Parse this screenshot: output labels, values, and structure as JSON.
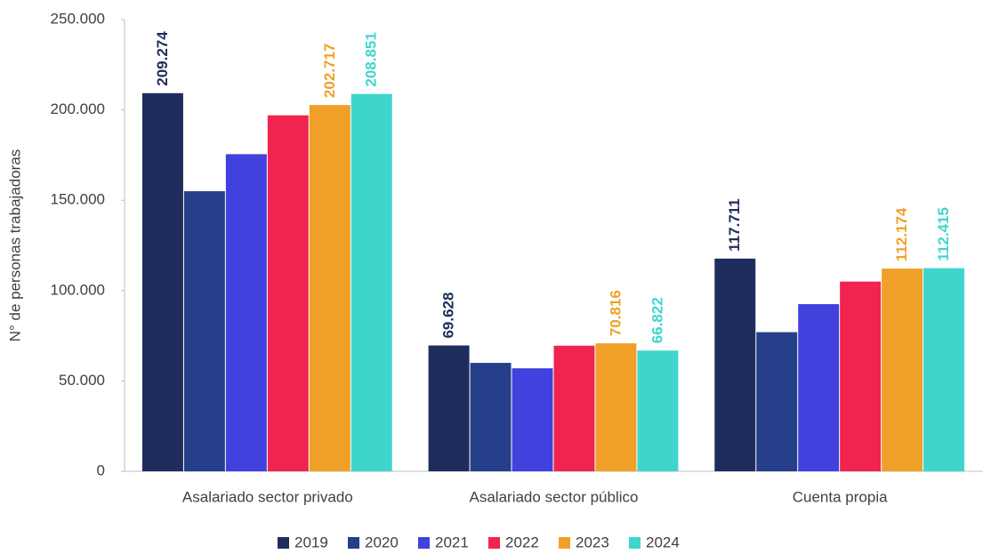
{
  "chart_data": {
    "type": "bar",
    "y_label": "N° de personas trabajadoras",
    "categories": [
      "Asalariado sector privado",
      "Asalariado sector público",
      "Cuenta propia"
    ],
    "series": [
      {
        "name": "2019",
        "color": "#1f2d5c",
        "values": [
          209274,
          69628,
          117711
        ],
        "value_labels": [
          "209.274",
          "69.628",
          "117.711"
        ]
      },
      {
        "name": "2020",
        "color": "#263f8a",
        "values": [
          155000,
          60000,
          77000
        ]
      },
      {
        "name": "2021",
        "color": "#4141dd",
        "values": [
          175500,
          57000,
          92500
        ]
      },
      {
        "name": "2022",
        "color": "#f0244f",
        "values": [
          197000,
          69500,
          105000
        ]
      },
      {
        "name": "2023",
        "color": "#f0a028",
        "values": [
          202717,
          70816,
          112174
        ],
        "value_labels": [
          "202.717",
          "70.816",
          "112.174"
        ]
      },
      {
        "name": "2024",
        "color": "#3ed6cc",
        "values": [
          208851,
          66822,
          112415
        ],
        "value_labels": [
          "208.851",
          "66.822",
          "112.415"
        ]
      }
    ],
    "ylim": [
      0,
      250000
    ],
    "yticks": [
      0,
      {
        "value": 50000,
        "label": "50.000"
      },
      {
        "value": 100000,
        "label": "100.000"
      },
      {
        "value": 150000,
        "label": "150.000"
      },
      {
        "value": 200000,
        "label": "200.000"
      },
      {
        "value": 250000,
        "label": "250.000"
      }
    ],
    "legend": "bottom"
  }
}
